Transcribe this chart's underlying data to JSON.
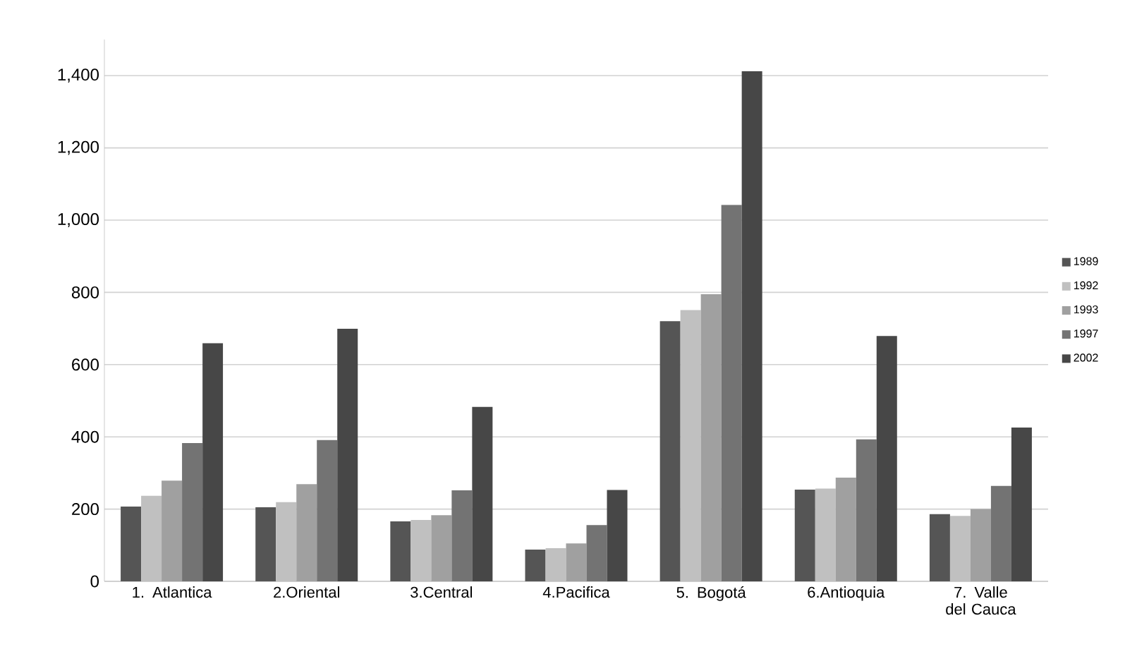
{
  "chart_data": {
    "type": "bar",
    "categories": [
      "1. Atlantica",
      "2.Oriental",
      "3.Central",
      "4.Pacifica",
      "5. Bogotá",
      "6.Antioquia",
      "7. Valle del Cauca"
    ],
    "series": [
      {
        "name": "1989",
        "color": "#555555",
        "values": [
          207,
          205,
          166,
          88,
          720,
          254,
          186
        ]
      },
      {
        "name": "1992",
        "color": "#c0c0c0",
        "values": [
          237,
          219,
          170,
          92,
          751,
          257,
          181
        ]
      },
      {
        "name": "1993",
        "color": "#a0a0a0",
        "values": [
          279,
          269,
          183,
          105,
          795,
          287,
          200
        ]
      },
      {
        "name": "1997",
        "color": "#737373",
        "values": [
          383,
          391,
          252,
          156,
          1042,
          393,
          264
        ]
      },
      {
        "name": "2002",
        "color": "#474747",
        "values": [
          659,
          699,
          483,
          253,
          1412,
          679,
          426
        ]
      }
    ],
    "ylim": [
      0,
      1500
    ],
    "yticks": [
      0,
      200,
      400,
      600,
      800,
      {
        "value": 1000,
        "label": "1,000"
      },
      {
        "value": 1200,
        "label": "1,200"
      },
      {
        "value": 1400,
        "label": "1,400"
      }
    ],
    "grid": "y",
    "legend": "right"
  }
}
